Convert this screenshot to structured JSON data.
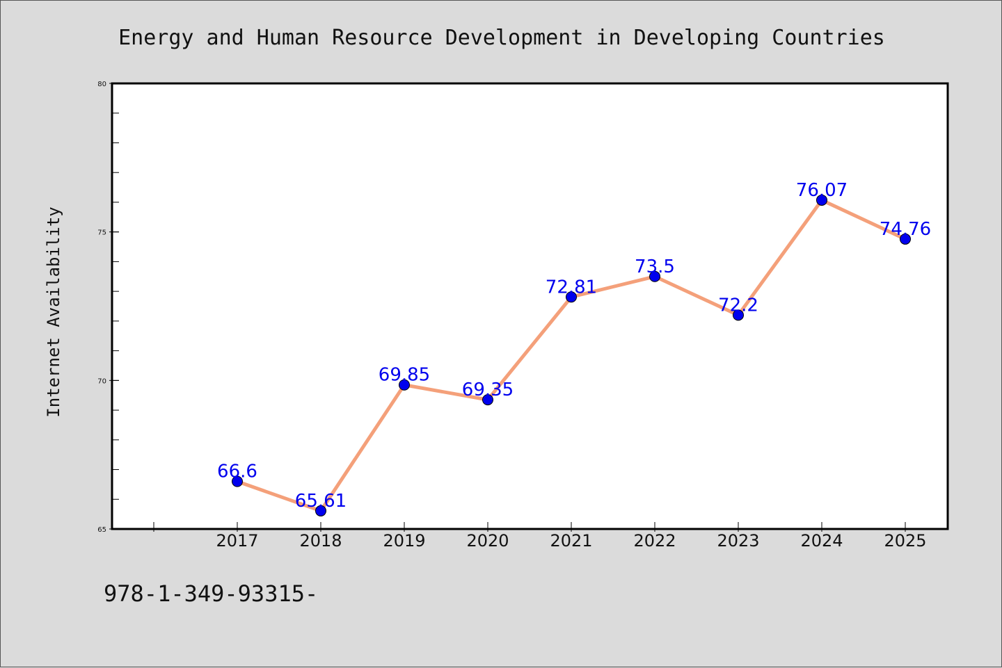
{
  "chart_data": {
    "type": "line",
    "title": "Energy and Human Resource Development in Developing Countries",
    "xlabel": "",
    "ylabel": "Internet Availability",
    "categories": [
      "2017",
      "2018",
      "2019",
      "2020",
      "2021",
      "2022",
      "2023",
      "2024",
      "2025"
    ],
    "series": [
      {
        "values": [
          66.6,
          65.61,
          69.85,
          69.35,
          72.81,
          73.5,
          72.2,
          76.07,
          74.76
        ],
        "line_color": "#f4a07a",
        "marker_color": "#0000ee",
        "label_color": "#0000ee"
      }
    ],
    "ylim": [
      65,
      80
    ],
    "yticks": [
      65,
      70,
      75,
      80
    ],
    "grid": false,
    "legend": "none"
  },
  "footer": {
    "text": "978-1-349-93315-"
  }
}
